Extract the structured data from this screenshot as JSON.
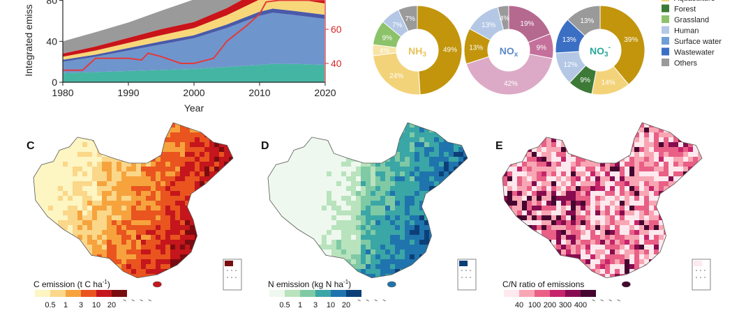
{
  "chart_data": [
    {
      "type": "area",
      "panel": "",
      "xlabel": "Year",
      "ylabel": "Integrated emiss",
      "xlim": [
        1980,
        2020
      ],
      "ylim": [
        0,
        90
      ],
      "y2lim": [
        30,
        77
      ],
      "x_ticks": [
        "1980",
        "1990",
        "2000",
        "2010",
        "2020"
      ],
      "y_ticks": [
        "0",
        "40",
        "80"
      ],
      "y2_ticks": [
        "40",
        "60"
      ],
      "x": [
        1980,
        1985,
        1990,
        1995,
        2000,
        2005,
        2010,
        2012,
        2015,
        2020
      ],
      "series": [
        {
          "values": [
            9,
            10,
            11,
            12,
            13,
            15,
            17,
            18,
            18,
            17
          ],
          "color": "#45b5a3"
        },
        {
          "values": [
            11,
            15,
            20,
            25,
            30,
            38,
            48,
            50,
            48,
            45
          ],
          "color": "#6f95cd"
        },
        {
          "values": [
            2,
            2,
            2.5,
            3,
            3,
            3.5,
            4,
            4,
            4,
            4
          ],
          "color": "#4a5aa8"
        },
        {
          "values": [
            3,
            4,
            5,
            6,
            7,
            9,
            12,
            12,
            12,
            11
          ],
          "color": "#f7d77a"
        },
        {
          "values": [
            3,
            4,
            5,
            6,
            6,
            7,
            9,
            9,
            9,
            8
          ],
          "color": "#c9141a"
        },
        {
          "values": [
            12,
            14,
            15,
            18,
            22,
            24,
            14,
            14,
            14,
            13
          ],
          "color": "#9a9a9a"
        }
      ],
      "line": {
        "color": "#e23a3a",
        "x": [
          1980,
          1983,
          1985,
          1988,
          1990,
          1992,
          1993,
          1995,
          1998,
          2000,
          2003,
          2005,
          2008,
          2010,
          2011,
          2013,
          2015,
          2018,
          2020
        ],
        "values": [
          36,
          36,
          43,
          43,
          43,
          42,
          46,
          44,
          40,
          40,
          43,
          53,
          62,
          69,
          76,
          77,
          77,
          77,
          77
        ]
      }
    },
    {
      "type": "pie",
      "panel": "",
      "charts": [
        {
          "label": "NH",
          "label_sub": "3",
          "label_sup": "",
          "label_color": "#e8c25a",
          "slices": [
            {
              "value": 49,
              "label": "49%",
              "color": "#c2950c"
            },
            {
              "value": 24,
              "label": "24%",
              "color": "#f3d37a"
            },
            {
              "value": 4,
              "label": "4%",
              "color": "#f7e4a6"
            },
            {
              "value": 9,
              "label": "9%",
              "color": "#8cc26a"
            },
            {
              "value": 7,
              "label": "7%",
              "color": "#b4c8e6"
            },
            {
              "value": 7,
              "label": "7%",
              "color": "#9a9a9a"
            }
          ]
        },
        {
          "label": "NO",
          "label_sub": "x",
          "label_sup": "",
          "label_color": "#5b88c8",
          "slices": [
            {
              "value": 19,
              "label": "19%",
              "color": "#b5698f"
            },
            {
              "value": 9,
              "label": "9%",
              "color": "#c4709b"
            },
            {
              "value": 42,
              "label": "42%",
              "color": "#dcaac6"
            },
            {
              "value": 13,
              "label": "13%",
              "color": "#c2950c"
            },
            {
              "value": 13,
              "label": "13%",
              "color": "#b4c8e6"
            },
            {
              "value": 4,
              "label": "4%",
              "color": "#9a9a9a"
            }
          ]
        },
        {
          "label": "NO",
          "label_sub": "3",
          "label_sup": "-",
          "label_color": "#2aa89a",
          "slices": [
            {
              "value": 39,
              "label": "39%",
              "color": "#c2950c"
            },
            {
              "value": 14,
              "label": "14%",
              "color": "#f3d37a"
            },
            {
              "value": 9,
              "label": "9%",
              "color": "#3d7a38"
            },
            {
              "value": 12,
              "label": "12%",
              "color": "#b4c8e6"
            },
            {
              "value": 13,
              "label": "13%",
              "color": "#3b6fc4"
            },
            {
              "value": 13,
              "label": "13%",
              "color": "#9a9a9a"
            }
          ]
        }
      ],
      "legend": [
        {
          "label": "Aquaculture",
          "color": "#f3d37a"
        },
        {
          "label": "Forest",
          "color": "#3d7a38"
        },
        {
          "label": "Grassland",
          "color": "#8cc26a"
        },
        {
          "label": "Human",
          "color": "#b4c8e6"
        },
        {
          "label": "Surface water",
          "color": "#6f9fd6"
        },
        {
          "label": "Wastewater",
          "color": "#3b6fc4"
        },
        {
          "label": "Others",
          "color": "#9a9a9a"
        }
      ]
    },
    {
      "type": "heatmap",
      "panel": "C",
      "colorbar_title": "C emission (t C ha",
      "colorbar_title_sup": "-1",
      "colorbar_title_end": ")",
      "colorbar_ticks": [
        "0.5",
        "1",
        "3",
        "10",
        "20"
      ],
      "colors": [
        "#fdf5c2",
        "#fbd789",
        "#f6a33e",
        "#e9541f",
        "#c4161c",
        "#7a0c10"
      ]
    },
    {
      "type": "heatmap",
      "panel": "D",
      "colorbar_title": "N emission (kg N ha",
      "colorbar_title_sup": "-1",
      "colorbar_title_end": ")",
      "colorbar_ticks": [
        "0.5",
        "1",
        "3",
        "10",
        "20"
      ],
      "colors": [
        "#eef8ee",
        "#b8e3bd",
        "#7fcaa5",
        "#3aa6a6",
        "#1f74ad",
        "#0c3f78"
      ]
    },
    {
      "type": "heatmap",
      "panel": "E",
      "colorbar_title": "C/N ratio of emissions",
      "colorbar_title_sup": "",
      "colorbar_title_end": "",
      "colorbar_ticks": [
        "40",
        "100",
        "200",
        "300",
        "400"
      ],
      "colors": [
        "#fde9ee",
        "#f8a6b4",
        "#e95f86",
        "#c6256c",
        "#870c4f",
        "#45062f"
      ]
    }
  ]
}
